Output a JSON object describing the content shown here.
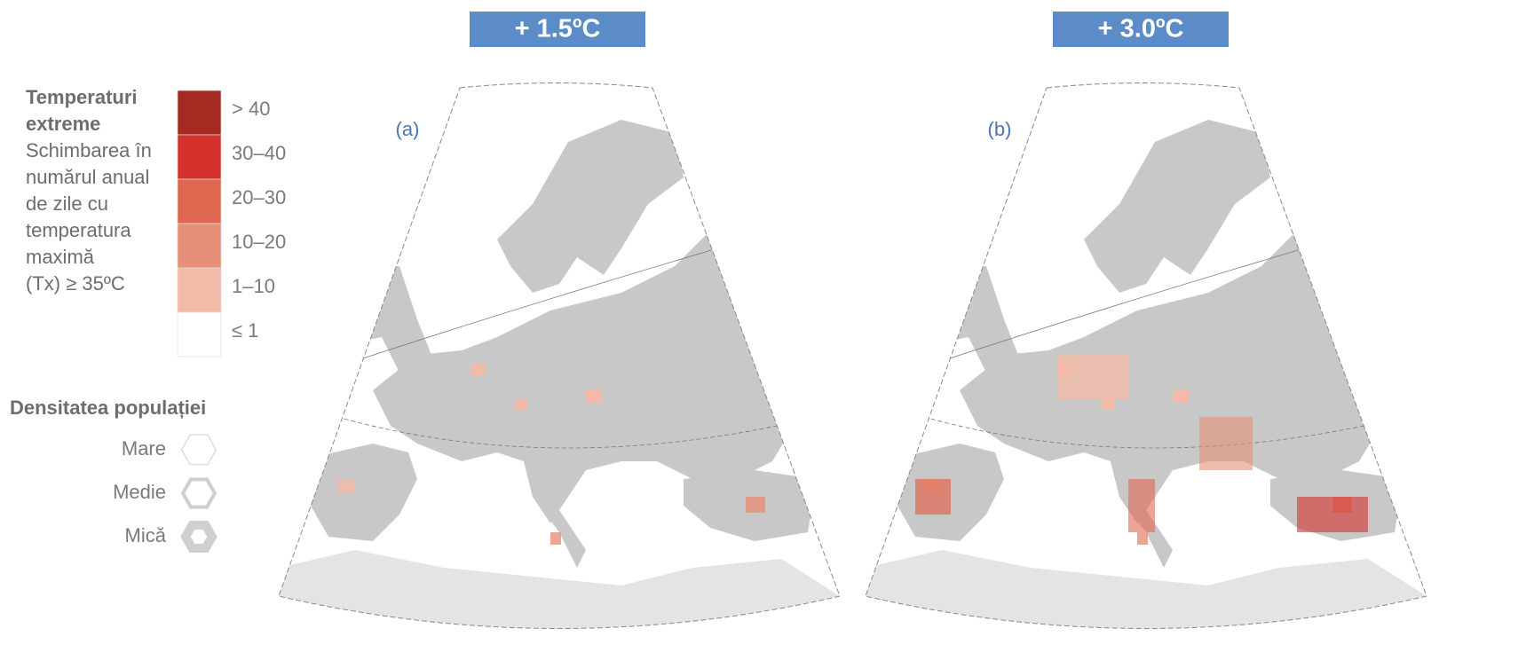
{
  "panels": [
    {
      "title": "+ 1.5ºC",
      "label": "(a)"
    },
    {
      "title": "+ 3.0ºC",
      "label": "(b)"
    }
  ],
  "legend": {
    "title": [
      "Temperaturi",
      "extreme"
    ],
    "description": [
      "Schimbarea în",
      "numărul anual",
      "de zile cu",
      "temperatura",
      "maximă",
      "(Tx) ≥ 35ºC"
    ],
    "classes": [
      {
        "label": "> 40",
        "color": "#a52a22"
      },
      {
        "label": "30–40",
        "color": "#d4312c"
      },
      {
        "label": "20–30",
        "color": "#df6750"
      },
      {
        "label": "10–20",
        "color": "#e69078"
      },
      {
        "label": "1–10",
        "color": "#f2bba8"
      },
      {
        "label": "≤ 1",
        "color": "#ffffff"
      }
    ]
  },
  "population_legend": {
    "title": "Densitatea populației",
    "items": [
      "Mare",
      "Medie",
      "Mică"
    ]
  }
}
